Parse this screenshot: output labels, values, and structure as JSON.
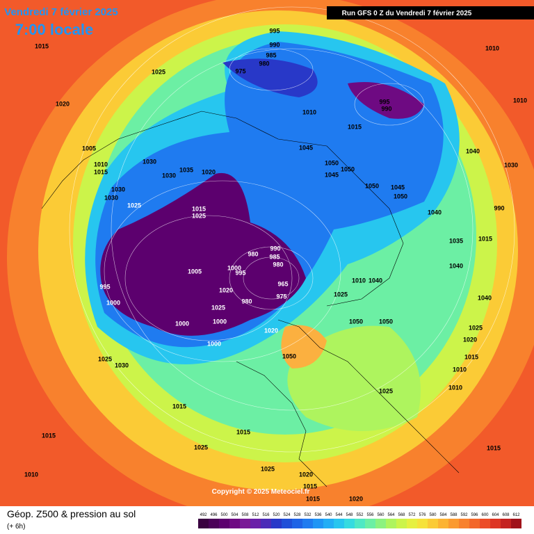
{
  "header": {
    "date": "Vendredi 7 février 2025",
    "time": "7:00 locale",
    "run": "Run GFS 0 Z du Vendredi 7 février 2025"
  },
  "pressure_labels": [
    995,
    990,
    985,
    980,
    975,
    1015,
    1025,
    1020,
    1010,
    1010,
    995,
    990,
    1010,
    1015,
    1040,
    1030,
    1005,
    1010,
    1015,
    1030,
    1035,
    1020,
    1045,
    1050,
    1050,
    1045,
    1050,
    1045,
    1050,
    1030,
    1030,
    1025,
    1030,
    1015,
    1025,
    1040,
    990,
    1035,
    1015,
    990,
    985,
    980,
    980,
    1000,
    995,
    1005,
    965,
    975,
    995,
    1000,
    980,
    1020,
    1025,
    1000,
    1000,
    1000,
    1020,
    1025,
    1010,
    1040,
    1040,
    1040,
    1050,
    1050,
    1025,
    1020,
    1015,
    1010,
    1010,
    1050,
    1025,
    1030,
    1015,
    1025,
    1015,
    1015,
    1025,
    1015,
    1025,
    1010,
    1020,
    1015,
    1015,
    1020
  ],
  "copyright": "Copyright © 2025 Meteociel.fr",
  "footer": {
    "title": "Géop. Z500 & pression au sol",
    "step": "(+ 6h)"
  },
  "color_scale": {
    "values": [
      492,
      496,
      500,
      504,
      508,
      512,
      516,
      520,
      524,
      528,
      532,
      536,
      540,
      544,
      548,
      552,
      556,
      560,
      564,
      568,
      572,
      576,
      580,
      584,
      588,
      592,
      596,
      600,
      604,
      608,
      612
    ],
    "colors": [
      "#3a0040",
      "#4b0058",
      "#5c006e",
      "#6e0a82",
      "#7a1a96",
      "#6a1fa8",
      "#4b2bb8",
      "#2838c8",
      "#1f4fd8",
      "#1e63e6",
      "#1f7bf0",
      "#1f95f5",
      "#22aef5",
      "#27c6ef",
      "#35dbe0",
      "#4fe8c4",
      "#6cefa4",
      "#8cf27f",
      "#aef45e",
      "#ccf44a",
      "#e6f040",
      "#f6e23a",
      "#fbcb36",
      "#fcb333",
      "#fb9a30",
      "#f8812d",
      "#f3672a",
      "#ec4d28",
      "#dd3524",
      "#c42220",
      "#a0121a"
    ]
  }
}
